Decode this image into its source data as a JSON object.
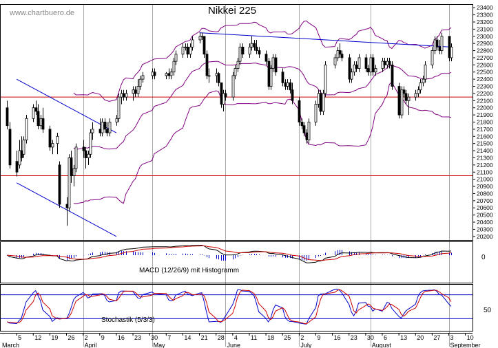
{
  "watermark": "www.chartbuero.de",
  "chart_data": {
    "type": "candlestick",
    "title": "Nikkei 225",
    "colors": {
      "candle_up": "#ffffff",
      "candle_down": "#000000",
      "bollinger": "#800080",
      "trendline": "#0000cc",
      "support_resistance": "#cc0000",
      "macd": "#000000",
      "macd_signal": "#cc0000",
      "histogram": "#0000cc",
      "stoch_k": "#0000cc",
      "stoch_d": "#cc0000",
      "month_separator": "#aaaaaa"
    },
    "price_axis": {
      "ylim": [
        20150,
        23450
      ],
      "ticks": [
        20200,
        20300,
        20400,
        20500,
        20600,
        20700,
        20800,
        20900,
        21000,
        21100,
        21200,
        21300,
        21400,
        21500,
        21600,
        21700,
        21800,
        21900,
        22000,
        22100,
        22200,
        22300,
        22400,
        22500,
        22600,
        22700,
        22800,
        22900,
        23000,
        23100,
        23200,
        23300,
        23400
      ]
    },
    "x_axis": {
      "date_labels": [
        "5",
        "12",
        "19",
        "26",
        "2",
        "9",
        "16",
        "23",
        "30",
        "7",
        "14",
        "21",
        "28",
        "4",
        "11",
        "18",
        "25",
        "2",
        "9",
        "16",
        "23",
        "30",
        "6",
        "13",
        "20",
        "27",
        "3",
        "10"
      ],
      "month_labels": [
        "March",
        "April",
        "May",
        "June",
        "July",
        "August",
        "September"
      ]
    },
    "horizontal_lines": [
      22150,
      21050
    ],
    "trendlines": [
      {
        "from": [
          "2018-03-05",
          22400
        ],
        "to": [
          "2018-04-16",
          21650
        ]
      },
      {
        "from": [
          "2018-03-05",
          20950
        ],
        "to": [
          "2018-04-16",
          20200
        ]
      },
      {
        "from": [
          "2018-05-21",
          23050
        ],
        "to": [
          "2018-09-04",
          22850
        ]
      }
    ],
    "candles": [
      {
        "date": "2018-03-01",
        "o": 22000,
        "h": 22100,
        "l": 21700,
        "c": 21750
      },
      {
        "date": "2018-03-02",
        "o": 21700,
        "h": 21800,
        "l": 21150,
        "c": 21200
      },
      {
        "date": "2018-03-05",
        "o": 21250,
        "h": 21400,
        "l": 21040,
        "c": 21100
      },
      {
        "date": "2018-03-06",
        "o": 21200,
        "h": 21550,
        "l": 21150,
        "c": 21400
      },
      {
        "date": "2018-03-07",
        "o": 21400,
        "h": 21600,
        "l": 21250,
        "c": 21300
      },
      {
        "date": "2018-03-08",
        "o": 21350,
        "h": 21600,
        "l": 21300,
        "c": 21550
      },
      {
        "date": "2018-03-09",
        "o": 21550,
        "h": 21900,
        "l": 21500,
        "c": 21850
      },
      {
        "date": "2018-03-12",
        "o": 21850,
        "h": 22050,
        "l": 21800,
        "c": 22000
      },
      {
        "date": "2018-03-13",
        "o": 22000,
        "h": 22100,
        "l": 21900,
        "c": 21950
      },
      {
        "date": "2018-03-14",
        "o": 21950,
        "h": 22050,
        "l": 21700,
        "c": 21750
      },
      {
        "date": "2018-03-15",
        "o": 21750,
        "h": 21900,
        "l": 21700,
        "c": 21850
      },
      {
        "date": "2018-03-16",
        "o": 21850,
        "h": 22000,
        "l": 21650,
        "c": 21700
      },
      {
        "date": "2018-03-19",
        "o": 21700,
        "h": 21750,
        "l": 21400,
        "c": 21450
      },
      {
        "date": "2018-03-20",
        "o": 21450,
        "h": 21550,
        "l": 21350,
        "c": 21500
      },
      {
        "date": "2018-03-22",
        "o": 21500,
        "h": 21650,
        "l": 21350,
        "c": 21600
      },
      {
        "date": "2018-03-23",
        "o": 21200,
        "h": 21250,
        "l": 20600,
        "c": 20650
      },
      {
        "date": "2018-03-26",
        "o": 20650,
        "h": 20750,
        "l": 20350,
        "c": 20600
      },
      {
        "date": "2018-03-27",
        "o": 20600,
        "h": 21350,
        "l": 20550,
        "c": 21300
      },
      {
        "date": "2018-03-28",
        "o": 21300,
        "h": 21400,
        "l": 20950,
        "c": 21050
      },
      {
        "date": "2018-03-29",
        "o": 21050,
        "h": 21200,
        "l": 20900,
        "c": 21150
      },
      {
        "date": "2018-03-30",
        "o": 21150,
        "h": 21500,
        "l": 21100,
        "c": 21450
      },
      {
        "date": "2018-04-02",
        "o": 21450,
        "h": 21550,
        "l": 21300,
        "c": 21400
      },
      {
        "date": "2018-04-03",
        "o": 21400,
        "h": 21450,
        "l": 21150,
        "c": 21300
      },
      {
        "date": "2018-04-04",
        "o": 21300,
        "h": 21400,
        "l": 21200,
        "c": 21350
      },
      {
        "date": "2018-04-05",
        "o": 21350,
        "h": 21700,
        "l": 21300,
        "c": 21650
      },
      {
        "date": "2018-04-06",
        "o": 21650,
        "h": 21800,
        "l": 21550,
        "c": 21700
      },
      {
        "date": "2018-04-09",
        "o": 21700,
        "h": 21850,
        "l": 21600,
        "c": 21650
      },
      {
        "date": "2018-04-10",
        "o": 21650,
        "h": 21850,
        "l": 21600,
        "c": 21800
      },
      {
        "date": "2018-04-11",
        "o": 21800,
        "h": 21850,
        "l": 21650,
        "c": 21700
      },
      {
        "date": "2018-04-12",
        "o": 21700,
        "h": 21800,
        "l": 21600,
        "c": 21650
      },
      {
        "date": "2018-04-13",
        "o": 21650,
        "h": 21850,
        "l": 21600,
        "c": 21800
      },
      {
        "date": "2018-04-16",
        "o": 21800,
        "h": 21900,
        "l": 21750,
        "c": 21850
      },
      {
        "date": "2018-04-17",
        "o": 21850,
        "h": 22200,
        "l": 21800,
        "c": 22150
      },
      {
        "date": "2018-04-18",
        "o": 22150,
        "h": 22250,
        "l": 22050,
        "c": 22200
      },
      {
        "date": "2018-04-19",
        "o": 22200,
        "h": 22250,
        "l": 22100,
        "c": 22150
      },
      {
        "date": "2018-04-20",
        "o": 22150,
        "h": 22250,
        "l": 22100,
        "c": 22200
      },
      {
        "date": "2018-04-23",
        "o": 22200,
        "h": 22300,
        "l": 22100,
        "c": 22250
      },
      {
        "date": "2018-04-24",
        "o": 22250,
        "h": 22300,
        "l": 22150,
        "c": 22200
      },
      {
        "date": "2018-04-25",
        "o": 22200,
        "h": 22400,
        "l": 22150,
        "c": 22300
      },
      {
        "date": "2018-04-26",
        "o": 22300,
        "h": 22450,
        "l": 22250,
        "c": 22400
      },
      {
        "date": "2018-04-27",
        "o": 22400,
        "h": 22500,
        "l": 22350,
        "c": 22450
      },
      {
        "date": "2018-05-01",
        "o": 22450,
        "h": 22550,
        "l": 22400,
        "c": 22500
      },
      {
        "date": "2018-05-02",
        "o": 22500,
        "h": 22550,
        "l": 22400,
        "c": 22450
      },
      {
        "date": "2018-05-07",
        "o": 22450,
        "h": 22500,
        "l": 22400,
        "c": 22480
      },
      {
        "date": "2018-05-08",
        "o": 22480,
        "h": 22550,
        "l": 22400,
        "c": 22450
      },
      {
        "date": "2018-05-09",
        "o": 22450,
        "h": 22550,
        "l": 22400,
        "c": 22500
      },
      {
        "date": "2018-05-10",
        "o": 22500,
        "h": 22700,
        "l": 22450,
        "c": 22650
      },
      {
        "date": "2018-05-11",
        "o": 22650,
        "h": 22800,
        "l": 22600,
        "c": 22750
      },
      {
        "date": "2018-05-14",
        "o": 22750,
        "h": 22900,
        "l": 22700,
        "c": 22850
      },
      {
        "date": "2018-05-15",
        "o": 22850,
        "h": 22900,
        "l": 22800,
        "c": 22850
      },
      {
        "date": "2018-05-16",
        "o": 22850,
        "h": 22900,
        "l": 22700,
        "c": 22750
      },
      {
        "date": "2018-05-17",
        "o": 22750,
        "h": 22900,
        "l": 22700,
        "c": 22850
      },
      {
        "date": "2018-05-18",
        "o": 22850,
        "h": 23000,
        "l": 22800,
        "c": 22950
      },
      {
        "date": "2018-05-21",
        "o": 22950,
        "h": 23050,
        "l": 22900,
        "c": 23000
      },
      {
        "date": "2018-05-22",
        "o": 23000,
        "h": 23050,
        "l": 22950,
        "c": 23000
      },
      {
        "date": "2018-05-23",
        "o": 23000,
        "h": 23000,
        "l": 22700,
        "c": 22750
      },
      {
        "date": "2018-05-24",
        "o": 22750,
        "h": 22800,
        "l": 22400,
        "c": 22450
      },
      {
        "date": "2018-05-25",
        "o": 22450,
        "h": 22550,
        "l": 22350,
        "c": 22450
      },
      {
        "date": "2018-05-28",
        "o": 22450,
        "h": 22550,
        "l": 22350,
        "c": 22480
      },
      {
        "date": "2018-05-29",
        "o": 22480,
        "h": 22500,
        "l": 22300,
        "c": 22350
      },
      {
        "date": "2018-05-30",
        "o": 22350,
        "h": 22350,
        "l": 22000,
        "c": 22050
      },
      {
        "date": "2018-05-31",
        "o": 22050,
        "h": 22250,
        "l": 21950,
        "c": 22200
      },
      {
        "date": "2018-06-01",
        "o": 22200,
        "h": 22250,
        "l": 22100,
        "c": 22150
      },
      {
        "date": "2018-06-04",
        "o": 22150,
        "h": 22500,
        "l": 22100,
        "c": 22450
      },
      {
        "date": "2018-06-05",
        "o": 22450,
        "h": 22600,
        "l": 22400,
        "c": 22550
      },
      {
        "date": "2018-06-06",
        "o": 22550,
        "h": 22700,
        "l": 22500,
        "c": 22650
      },
      {
        "date": "2018-06-07",
        "o": 22650,
        "h": 22900,
        "l": 22600,
        "c": 22850
      },
      {
        "date": "2018-06-08",
        "o": 22850,
        "h": 22900,
        "l": 22700,
        "c": 22750
      },
      {
        "date": "2018-06-11",
        "o": 22750,
        "h": 22900,
        "l": 22700,
        "c": 22850
      },
      {
        "date": "2018-06-12",
        "o": 22850,
        "h": 23000,
        "l": 22800,
        "c": 22900
      },
      {
        "date": "2018-06-13",
        "o": 22900,
        "h": 22950,
        "l": 22800,
        "c": 22850
      },
      {
        "date": "2018-06-14",
        "o": 22850,
        "h": 22950,
        "l": 22750,
        "c": 22800
      },
      {
        "date": "2018-06-15",
        "o": 22800,
        "h": 22850,
        "l": 22700,
        "c": 22750
      },
      {
        "date": "2018-06-18",
        "o": 22750,
        "h": 22800,
        "l": 22600,
        "c": 22650
      },
      {
        "date": "2018-06-19",
        "o": 22650,
        "h": 22700,
        "l": 22250,
        "c": 22300
      },
      {
        "date": "2018-06-20",
        "o": 22300,
        "h": 22600,
        "l": 22250,
        "c": 22550
      },
      {
        "date": "2018-06-21",
        "o": 22550,
        "h": 22750,
        "l": 22500,
        "c": 22700
      },
      {
        "date": "2018-06-22",
        "o": 22700,
        "h": 22750,
        "l": 22450,
        "c": 22500
      },
      {
        "date": "2018-06-25",
        "o": 22500,
        "h": 22550,
        "l": 22300,
        "c": 22350
      },
      {
        "date": "2018-06-26",
        "o": 22350,
        "h": 22400,
        "l": 22250,
        "c": 22300
      },
      {
        "date": "2018-06-27",
        "o": 22300,
        "h": 22400,
        "l": 22250,
        "c": 22350
      },
      {
        "date": "2018-06-28",
        "o": 22350,
        "h": 22400,
        "l": 22200,
        "c": 22250
      },
      {
        "date": "2018-06-29",
        "o": 22250,
        "h": 22350,
        "l": 22050,
        "c": 22100
      },
      {
        "date": "2018-07-02",
        "o": 22100,
        "h": 22150,
        "l": 21750,
        "c": 21800
      },
      {
        "date": "2018-07-03",
        "o": 21800,
        "h": 21850,
        "l": 21700,
        "c": 21750
      },
      {
        "date": "2018-07-04",
        "o": 21750,
        "h": 21800,
        "l": 21600,
        "c": 21650
      },
      {
        "date": "2018-07-05",
        "o": 21650,
        "h": 21700,
        "l": 21500,
        "c": 21550
      },
      {
        "date": "2018-07-06",
        "o": 21550,
        "h": 21850,
        "l": 21500,
        "c": 21800
      },
      {
        "date": "2018-07-09",
        "o": 21800,
        "h": 22100,
        "l": 21750,
        "c": 22050
      },
      {
        "date": "2018-07-10",
        "o": 22050,
        "h": 22250,
        "l": 22000,
        "c": 22200
      },
      {
        "date": "2018-07-11",
        "o": 22200,
        "h": 22250,
        "l": 21900,
        "c": 21950
      },
      {
        "date": "2018-07-12",
        "o": 21950,
        "h": 22250,
        "l": 21900,
        "c": 22200
      },
      {
        "date": "2018-07-13",
        "o": 22200,
        "h": 22650,
        "l": 22150,
        "c": 22600
      },
      {
        "date": "2018-07-17",
        "o": 22600,
        "h": 22750,
        "l": 22550,
        "c": 22700
      },
      {
        "date": "2018-07-18",
        "o": 22700,
        "h": 22850,
        "l": 22650,
        "c": 22800
      },
      {
        "date": "2018-07-19",
        "o": 22800,
        "h": 22900,
        "l": 22700,
        "c": 22750
      },
      {
        "date": "2018-07-20",
        "o": 22750,
        "h": 22800,
        "l": 22650,
        "c": 22700
      },
      {
        "date": "2018-07-23",
        "o": 22700,
        "h": 22750,
        "l": 22350,
        "c": 22400
      },
      {
        "date": "2018-07-24",
        "o": 22400,
        "h": 22550,
        "l": 22350,
        "c": 22500
      },
      {
        "date": "2018-07-25",
        "o": 22500,
        "h": 22650,
        "l": 22450,
        "c": 22600
      },
      {
        "date": "2018-07-26",
        "o": 22600,
        "h": 22650,
        "l": 22500,
        "c": 22550
      },
      {
        "date": "2018-07-27",
        "o": 22550,
        "h": 22750,
        "l": 22500,
        "c": 22700
      },
      {
        "date": "2018-07-30",
        "o": 22700,
        "h": 22750,
        "l": 22500,
        "c": 22550
      },
      {
        "date": "2018-07-31",
        "o": 22550,
        "h": 22600,
        "l": 22450,
        "c": 22500
      },
      {
        "date": "2018-08-01",
        "o": 22500,
        "h": 22750,
        "l": 22450,
        "c": 22700
      },
      {
        "date": "2018-08-02",
        "o": 22700,
        "h": 22750,
        "l": 22450,
        "c": 22500
      },
      {
        "date": "2018-08-03",
        "o": 22500,
        "h": 22600,
        "l": 22450,
        "c": 22550
      },
      {
        "date": "2018-08-06",
        "o": 22550,
        "h": 22700,
        "l": 22500,
        "c": 22650
      },
      {
        "date": "2018-08-07",
        "o": 22650,
        "h": 22700,
        "l": 22550,
        "c": 22600
      },
      {
        "date": "2018-08-08",
        "o": 22600,
        "h": 22700,
        "l": 22550,
        "c": 22650
      },
      {
        "date": "2018-08-09",
        "o": 22650,
        "h": 22700,
        "l": 22550,
        "c": 22600
      },
      {
        "date": "2018-08-10",
        "o": 22600,
        "h": 22650,
        "l": 22250,
        "c": 22300
      },
      {
        "date": "2018-08-13",
        "o": 22300,
        "h": 22350,
        "l": 21850,
        "c": 21900
      },
      {
        "date": "2018-08-14",
        "o": 21900,
        "h": 22300,
        "l": 21850,
        "c": 22250
      },
      {
        "date": "2018-08-15",
        "o": 22250,
        "h": 22300,
        "l": 22150,
        "c": 22200
      },
      {
        "date": "2018-08-16",
        "o": 22200,
        "h": 22250,
        "l": 22050,
        "c": 22100
      },
      {
        "date": "2018-08-17",
        "o": 22100,
        "h": 22200,
        "l": 21900,
        "c": 22150
      },
      {
        "date": "2018-08-20",
        "o": 22150,
        "h": 22250,
        "l": 22100,
        "c": 22200
      },
      {
        "date": "2018-08-21",
        "o": 22200,
        "h": 22300,
        "l": 22150,
        "c": 22250
      },
      {
        "date": "2018-08-22",
        "o": 22250,
        "h": 22400,
        "l": 22200,
        "c": 22350
      },
      {
        "date": "2018-08-23",
        "o": 22350,
        "h": 22450,
        "l": 22300,
        "c": 22400
      },
      {
        "date": "2018-08-24",
        "o": 22400,
        "h": 22650,
        "l": 22350,
        "c": 22600
      },
      {
        "date": "2018-08-27",
        "o": 22600,
        "h": 22850,
        "l": 22550,
        "c": 22800
      },
      {
        "date": "2018-08-28",
        "o": 22800,
        "h": 23000,
        "l": 22750,
        "c": 22950
      },
      {
        "date": "2018-08-29",
        "o": 22950,
        "h": 23000,
        "l": 22800,
        "c": 22850
      },
      {
        "date": "2018-08-30",
        "o": 22850,
        "h": 22950,
        "l": 22750,
        "c": 22800
      },
      {
        "date": "2018-08-31",
        "o": 22800,
        "h": 23050,
        "l": 22750,
        "c": 23000
      },
      {
        "date": "2018-09-03",
        "o": 23000,
        "h": 23000,
        "l": 22650,
        "c": 22700
      },
      {
        "date": "2018-09-04",
        "o": 22700,
        "h": 22900,
        "l": 22650,
        "c": 22850
      }
    ],
    "macd": {
      "label": "MACD (12/26/9) mit Histogramm",
      "zero_label": "0"
    },
    "stochastic": {
      "label": "Stochastik (5/3/3)",
      "upper_label": "50",
      "levels": [
        80,
        20
      ]
    }
  }
}
